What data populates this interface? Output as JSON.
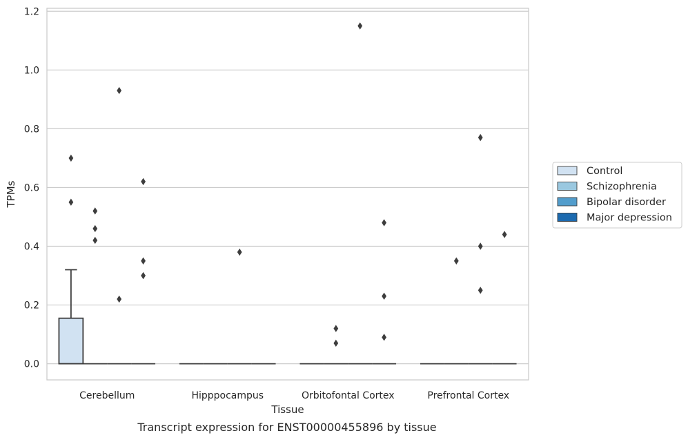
{
  "caption": "Transcript expression for ENST00000455896 by tissue",
  "chart_data": {
    "type": "box",
    "title": "",
    "xlabel": "Tissue",
    "ylabel": "TPMs",
    "ylim": [
      -0.055,
      1.21
    ],
    "yticks": [
      0.0,
      0.2,
      0.4,
      0.6,
      0.8,
      1.0,
      1.2
    ],
    "ytick_labels": [
      "0.0",
      "0.2",
      "0.4",
      "0.6",
      "0.8",
      "1.0",
      "1.2"
    ],
    "grid": "horizontal",
    "legend_position": "right",
    "categories": [
      "Cerebellum",
      "Hipppocampus",
      "Orbitofontal Cortex",
      "Prefrontal Cortex"
    ],
    "series": [
      {
        "name": "Control",
        "color": "#d1e2f2",
        "boxes": [
          {
            "category": "Cerebellum",
            "q1": 0.0,
            "median": 0.0,
            "q3": 0.155,
            "whisker_low": 0.0,
            "whisker_high": 0.32,
            "outliers": [
              0.55,
              0.7
            ]
          },
          {
            "category": "Hipppocampus",
            "q1": 0.0,
            "median": 0.0,
            "q3": 0.0,
            "whisker_low": 0.0,
            "whisker_high": 0.0,
            "outliers": []
          },
          {
            "category": "Orbitofontal Cortex",
            "q1": 0.0,
            "median": 0.0,
            "q3": 0.0,
            "whisker_low": 0.0,
            "whisker_high": 0.0,
            "outliers": []
          },
          {
            "category": "Prefrontal Cortex",
            "q1": 0.0,
            "median": 0.0,
            "q3": 0.0,
            "whisker_low": 0.0,
            "whisker_high": 0.0,
            "outliers": []
          }
        ]
      },
      {
        "name": "Schizophrenia",
        "color": "#9ac8e0",
        "boxes": [
          {
            "category": "Cerebellum",
            "q1": 0.0,
            "median": 0.0,
            "q3": 0.0,
            "whisker_low": 0.0,
            "whisker_high": 0.0,
            "outliers": [
              0.52,
              0.46,
              0.42
            ]
          },
          {
            "category": "Hipppocampus",
            "q1": 0.0,
            "median": 0.0,
            "q3": 0.0,
            "whisker_low": 0.0,
            "whisker_high": 0.0,
            "outliers": []
          },
          {
            "category": "Orbitofontal Cortex",
            "q1": 0.0,
            "median": 0.0,
            "q3": 0.0,
            "whisker_low": 0.0,
            "whisker_high": 0.0,
            "outliers": [
              0.12,
              0.07
            ]
          },
          {
            "category": "Prefrontal Cortex",
            "q1": 0.0,
            "median": 0.0,
            "q3": 0.0,
            "whisker_low": 0.0,
            "whisker_high": 0.0,
            "outliers": [
              0.35
            ]
          }
        ]
      },
      {
        "name": "Bipolar disorder",
        "color": "#529dcc",
        "boxes": [
          {
            "category": "Cerebellum",
            "q1": 0.0,
            "median": 0.0,
            "q3": 0.0,
            "whisker_low": 0.0,
            "whisker_high": 0.0,
            "outliers": [
              0.93,
              0.22
            ]
          },
          {
            "category": "Hipppocampus",
            "q1": 0.0,
            "median": 0.0,
            "q3": 0.0,
            "whisker_low": 0.0,
            "whisker_high": 0.0,
            "outliers": [
              0.38
            ]
          },
          {
            "category": "Orbitofontal Cortex",
            "q1": 0.0,
            "median": 0.0,
            "q3": 0.0,
            "whisker_low": 0.0,
            "whisker_high": 0.0,
            "outliers": [
              1.15
            ]
          },
          {
            "category": "Prefrontal Cortex",
            "q1": 0.0,
            "median": 0.0,
            "q3": 0.0,
            "whisker_low": 0.0,
            "whisker_high": 0.0,
            "outliers": [
              0.77,
              0.4,
              0.25
            ]
          }
        ]
      },
      {
        "name": "Major depression",
        "color": "#1c6aaf",
        "boxes": [
          {
            "category": "Cerebellum",
            "q1": 0.0,
            "median": 0.0,
            "q3": 0.0,
            "whisker_low": 0.0,
            "whisker_high": 0.0,
            "outliers": [
              0.62,
              0.35,
              0.3
            ]
          },
          {
            "category": "Hipppocampus",
            "q1": 0.0,
            "median": 0.0,
            "q3": 0.0,
            "whisker_low": 0.0,
            "whisker_high": 0.0,
            "outliers": []
          },
          {
            "category": "Orbitofontal Cortex",
            "q1": 0.0,
            "median": 0.0,
            "q3": 0.0,
            "whisker_low": 0.0,
            "whisker_high": 0.0,
            "outliers": [
              0.48,
              0.23,
              0.09
            ]
          },
          {
            "category": "Prefrontal Cortex",
            "q1": 0.0,
            "median": 0.0,
            "q3": 0.0,
            "whisker_low": 0.0,
            "whisker_high": 0.0,
            "outliers": [
              0.44
            ]
          }
        ]
      }
    ]
  }
}
